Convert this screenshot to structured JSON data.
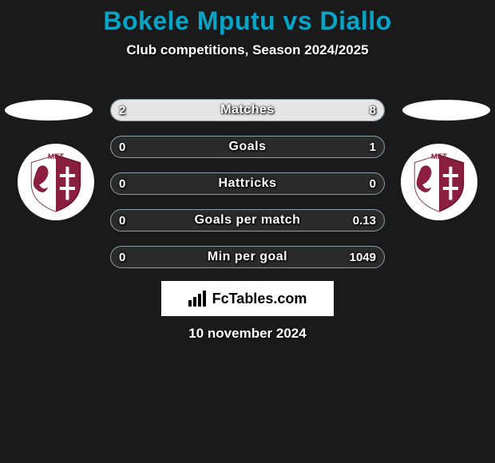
{
  "title": "Bokele Mputu vs Diallo",
  "subtitle": "Club competitions, Season 2024/2025",
  "date": "10 november 2024",
  "brand": "FcTables.com",
  "colors": {
    "background": "#1a1a1a",
    "title": "#06a5c8",
    "bar_border": "#8aa0a8",
    "bar_track": "#2a2a2a",
    "left_fill": "#e6e6e6",
    "right_fill": "#e6e6e6",
    "white": "#ffffff"
  },
  "club_badge": {
    "name": "MET",
    "primary": "#8a1f3f",
    "secondary": "#ffffff"
  },
  "bars": [
    {
      "label": "Matches",
      "left": "2",
      "right": "8",
      "left_pct": 20,
      "right_pct": 80
    },
    {
      "label": "Goals",
      "left": "0",
      "right": "1",
      "left_pct": 0,
      "right_pct": 0
    },
    {
      "label": "Hattricks",
      "left": "0",
      "right": "0",
      "left_pct": 0,
      "right_pct": 0
    },
    {
      "label": "Goals per match",
      "left": "0",
      "right": "0.13",
      "left_pct": 0,
      "right_pct": 0
    },
    {
      "label": "Min per goal",
      "left": "0",
      "right": "1049",
      "left_pct": 0,
      "right_pct": 0
    }
  ]
}
